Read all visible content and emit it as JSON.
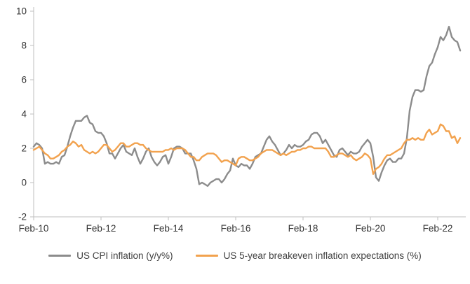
{
  "chart_data": {
    "type": "line",
    "title": "",
    "xlabel": "",
    "ylabel": "",
    "ylim": [
      -2,
      10
    ],
    "y_ticks": [
      -2,
      0,
      2,
      4,
      6,
      8,
      10
    ],
    "x_ticks": [
      {
        "index": 0,
        "label": "Feb-10"
      },
      {
        "index": 24,
        "label": "Feb-12"
      },
      {
        "index": 48,
        "label": "Feb-14"
      },
      {
        "index": 72,
        "label": "Feb-16"
      },
      {
        "index": 96,
        "label": "Feb-18"
      },
      {
        "index": 120,
        "label": "Feb-20"
      },
      {
        "index": 144,
        "label": "Feb-22"
      }
    ],
    "x_start": "Feb-2010",
    "x_frequency": "monthly",
    "grid": false,
    "legend_position": "bottom",
    "axis_color": "#bfbfbf",
    "tick_label_color": "#333333",
    "series": [
      {
        "name": "US CPI inflation (y/y%)",
        "color": "#8C8C8C",
        "values": [
          2.1,
          2.3,
          2.2,
          2.0,
          1.1,
          1.2,
          1.1,
          1.1,
          1.2,
          1.1,
          1.5,
          1.6,
          2.1,
          2.7,
          3.2,
          3.6,
          3.6,
          3.6,
          3.8,
          3.9,
          3.5,
          3.4,
          3.0,
          2.9,
          2.9,
          2.7,
          2.3,
          1.7,
          1.7,
          1.4,
          1.7,
          2.0,
          2.2,
          1.8,
          1.7,
          1.6,
          2.0,
          1.5,
          1.1,
          1.4,
          1.8,
          2.0,
          1.5,
          1.2,
          1.0,
          1.2,
          1.5,
          1.6,
          1.1,
          1.5,
          2.0,
          2.1,
          2.1,
          2.0,
          1.7,
          1.7,
          1.7,
          1.3,
          0.8,
          -0.1,
          0.0,
          -0.1,
          -0.2,
          0.0,
          0.1,
          0.2,
          0.2,
          0.0,
          0.2,
          0.5,
          0.7,
          1.4,
          1.0,
          0.9,
          1.1,
          1.0,
          1.0,
          0.8,
          1.1,
          1.5,
          1.6,
          1.7,
          2.1,
          2.5,
          2.7,
          2.4,
          2.2,
          1.9,
          1.6,
          1.7,
          1.9,
          2.2,
          2.0,
          2.2,
          2.1,
          2.1,
          2.2,
          2.4,
          2.5,
          2.8,
          2.9,
          2.9,
          2.7,
          2.3,
          2.5,
          2.2,
          1.9,
          1.6,
          1.5,
          1.9,
          2.0,
          1.8,
          1.6,
          1.8,
          1.7,
          1.7,
          1.8,
          2.1,
          2.3,
          2.5,
          2.3,
          1.5,
          0.3,
          0.1,
          0.6,
          1.0,
          1.3,
          1.4,
          1.2,
          1.2,
          1.4,
          1.4,
          1.7,
          2.6,
          4.2,
          5.0,
          5.4,
          5.4,
          5.3,
          5.4,
          6.2,
          6.8,
          7.0,
          7.5,
          7.9,
          8.5,
          8.3,
          8.6,
          9.1,
          8.5,
          8.3,
          8.2,
          7.7
        ]
      },
      {
        "name": "US 5-year breakeven inflation expectations (%)",
        "color": "#F2A24E",
        "values": [
          1.9,
          2.0,
          2.1,
          1.9,
          1.7,
          1.6,
          1.4,
          1.4,
          1.5,
          1.6,
          1.8,
          1.9,
          2.1,
          2.2,
          2.4,
          2.3,
          2.1,
          2.2,
          1.9,
          1.8,
          1.7,
          1.8,
          1.7,
          1.8,
          2.0,
          2.2,
          2.2,
          2.0,
          1.8,
          1.9,
          2.1,
          2.3,
          2.3,
          2.1,
          2.1,
          2.2,
          2.3,
          2.3,
          2.2,
          2.2,
          2.0,
          1.9,
          1.8,
          1.8,
          1.8,
          1.8,
          1.8,
          1.9,
          1.9,
          2.0,
          1.9,
          2.0,
          2.0,
          2.0,
          1.9,
          1.7,
          1.5,
          1.5,
          1.3,
          1.3,
          1.5,
          1.6,
          1.7,
          1.7,
          1.7,
          1.6,
          1.4,
          1.2,
          1.3,
          1.3,
          1.2,
          1.1,
          1.0,
          1.4,
          1.5,
          1.5,
          1.4,
          1.3,
          1.3,
          1.4,
          1.5,
          1.7,
          1.8,
          1.9,
          1.9,
          1.9,
          1.8,
          1.7,
          1.6,
          1.7,
          1.6,
          1.7,
          1.8,
          1.8,
          1.9,
          1.9,
          2.0,
          2.0,
          2.1,
          2.1,
          2.0,
          2.0,
          2.0,
          2.0,
          2.0,
          1.8,
          1.5,
          1.5,
          1.6,
          1.7,
          1.7,
          1.6,
          1.5,
          1.6,
          1.4,
          1.3,
          1.4,
          1.5,
          1.7,
          1.6,
          1.4,
          0.5,
          0.8,
          0.9,
          1.1,
          1.4,
          1.6,
          1.6,
          1.7,
          1.8,
          1.9,
          2.0,
          2.3,
          2.5,
          2.5,
          2.6,
          2.5,
          2.6,
          2.5,
          2.5,
          2.9,
          3.1,
          2.8,
          2.9,
          3.0,
          3.4,
          3.3,
          3.0,
          3.0,
          2.6,
          2.7,
          2.3,
          2.6
        ]
      }
    ]
  },
  "legend": {
    "items": [
      {
        "label": "US CPI inflation (y/y%)"
      },
      {
        "label": "US 5-year breakeven inflation expectations (%)"
      }
    ]
  }
}
